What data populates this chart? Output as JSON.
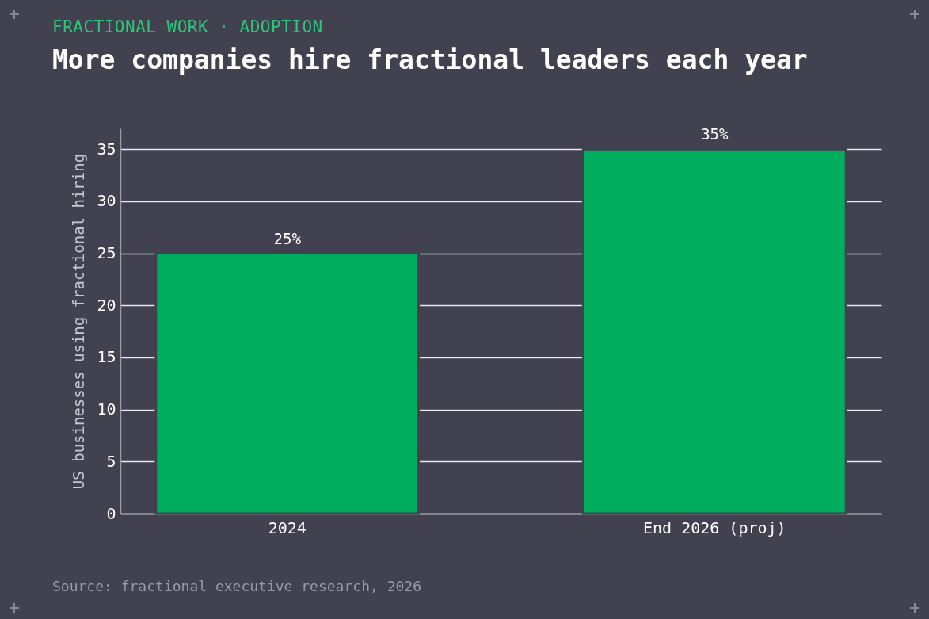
{
  "chart_data": {
    "type": "bar",
    "subtitle": "FRACTIONAL WORK · ADOPTION",
    "title": "More companies hire fractional leaders each year",
    "categories": [
      "2024",
      "End 2026 (proj)"
    ],
    "values": [
      25,
      35
    ],
    "color": "#00ad5f",
    "value_labels": [
      "25%",
      "35%"
    ],
    "ylabel": "US businesses using fractional hiring",
    "ylim": [
      0,
      37
    ],
    "yticks": [
      0,
      5,
      10,
      15,
      20,
      25,
      30,
      35
    ],
    "grid": "y",
    "annotations": [
      "Source: fractional executive research, 2026"
    ]
  }
}
